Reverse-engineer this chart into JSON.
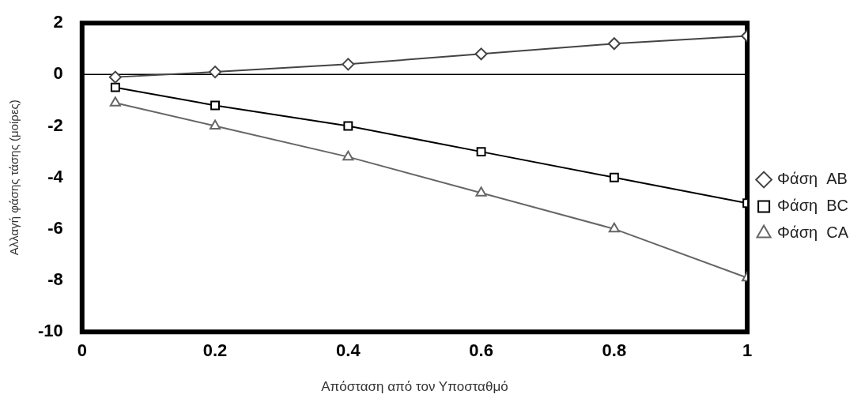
{
  "chart_data": {
    "type": "line",
    "xlabel": "Απόσταση από τον Υποσταθμό",
    "ylabel": "Αλλαγή φάσης τάσης (μοίρες)",
    "x": [
      0.05,
      0.2,
      0.4,
      0.6,
      0.8,
      1
    ],
    "series": [
      {
        "name": "Φάση  AB",
        "color": "#444444",
        "marker": "diamond",
        "values": [
          -0.1,
          0.1,
          0.4,
          0.8,
          1.2,
          1.5
        ]
      },
      {
        "name": "Φάση  BC",
        "color": "#000000",
        "marker": "square",
        "values": [
          -0.5,
          -1.2,
          -2.0,
          -3.0,
          -4.0,
          -5.0
        ]
      },
      {
        "name": "Φάση  CA",
        "color": "#666666",
        "marker": "triangle",
        "values": [
          -1.1,
          -2.0,
          -3.2,
          -4.6,
          -6.0,
          -7.9
        ]
      }
    ],
    "xlim": [
      0,
      1
    ],
    "xticks": [
      0,
      0.2,
      0.4,
      0.6,
      0.8,
      1
    ],
    "ylim": [
      -10,
      2
    ],
    "yticks": [
      -10,
      -8,
      -6,
      -4,
      -2,
      0,
      2
    ],
    "ref_lines": [
      {
        "axis": "y",
        "value": 0,
        "color": "#000000"
      }
    ],
    "grid": false,
    "legend": "right",
    "line_style": "solid"
  }
}
